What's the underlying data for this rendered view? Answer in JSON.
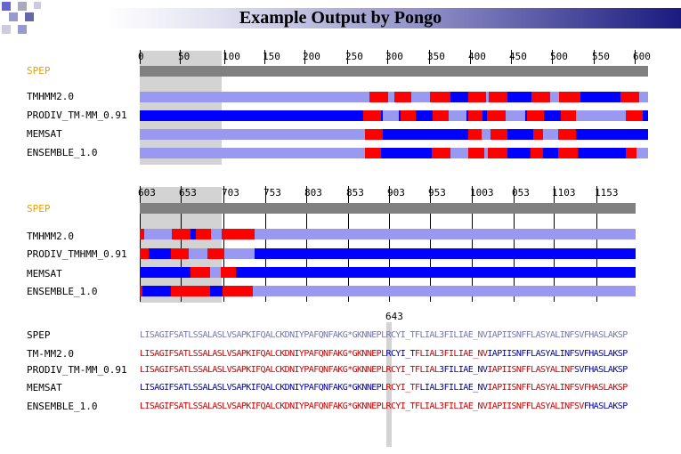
{
  "title": "Example Output by Pongo",
  "colors": {
    "spep_bar": "#808080",
    "inside": "#9999f2",
    "outside": "#0000ff",
    "helix": "#ff0000",
    "shade": "#d3d3d3",
    "label_orange": "#e8a000",
    "seq_red": "#cc0000",
    "seq_blue": "#0000aa"
  },
  "panel1": {
    "ticks": [
      "0",
      "50",
      "100",
      "150",
      "200",
      "250",
      "300",
      "350",
      "400",
      "450",
      "500",
      "550",
      "600"
    ],
    "labels": [
      "SPEP",
      "TMHMM2.0",
      "PRODIV_TM-MM_0.91",
      "MEMSAT",
      "ENSEMBLE_1.0"
    ]
  },
  "panel2": {
    "ticks": [
      "603",
      "653",
      "703",
      "753",
      "803",
      "853",
      "903",
      "953",
      "1003",
      "053",
      "1103",
      "1153"
    ],
    "labels": [
      "SPEP",
      "TMHMM2.0",
      "PRODIV_TMHMM_0.91",
      "MEMSAT",
      "ENSEMBLE_1.0"
    ]
  },
  "panel3": {
    "marker": "643",
    "labels": [
      "SPEP",
      "TM-MM2.0",
      "PRODIV_TM-MM_0.91",
      "MEMSAT",
      "ENSEMBLE_1.0"
    ],
    "sequence": "LISAGIFSATLSSALASLVSAPKIFQALCKDNIYPAFQNFAKG*GKNNEPLRCYI_TFLIAL3FILIAE_NVIAPIISNFFLASYALINFSVFHASLAKSP"
  }
}
